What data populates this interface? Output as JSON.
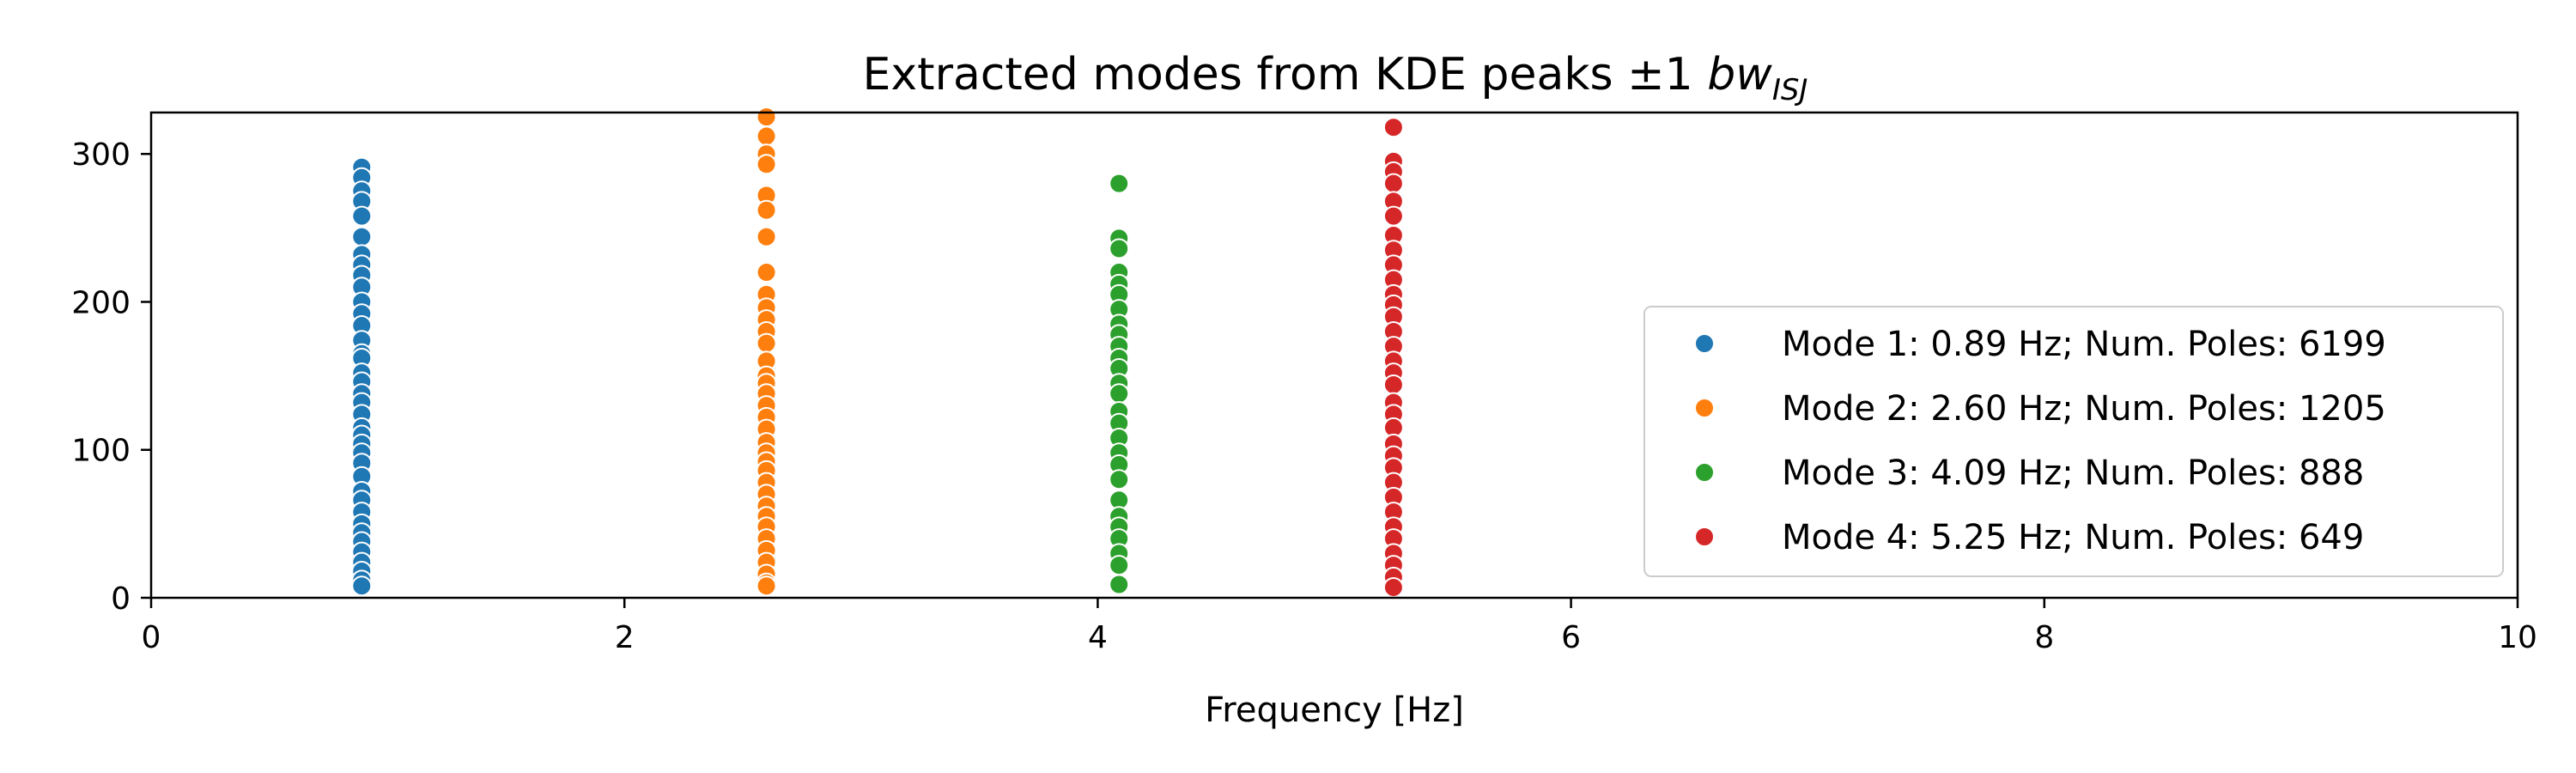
{
  "chart_data": {
    "type": "scatter",
    "title_main": "Extracted modes from KDE peaks ±1 ",
    "title_math": "bw",
    "title_sub": "ISJ",
    "xlabel": "Frequency [Hz]",
    "ylabel": "",
    "xlim": [
      0,
      10
    ],
    "ylim": [
      0,
      328
    ],
    "xticks": [
      0,
      2,
      4,
      6,
      8,
      10
    ],
    "yticks": [
      0,
      100,
      200,
      300
    ],
    "grid": false,
    "legend_position": "right",
    "series": [
      {
        "name": "Mode 1: 0.89 Hz; Num. Poles: 6199",
        "color": "#1f77b4",
        "x": [
          0.89,
          0.89,
          0.89,
          0.89,
          0.89,
          0.89,
          0.89,
          0.89,
          0.89,
          0.89,
          0.89,
          0.89,
          0.89,
          0.89,
          0.89,
          0.89,
          0.89,
          0.89,
          0.89,
          0.89,
          0.89,
          0.89,
          0.89,
          0.89,
          0.89,
          0.89,
          0.89,
          0.89,
          0.89,
          0.89,
          0.89,
          0.89,
          0.89,
          0.89,
          0.89,
          0.89,
          0.89,
          0.89
        ],
        "y": [
          291,
          284,
          275,
          268,
          258,
          244,
          232,
          225,
          218,
          210,
          200,
          192,
          184,
          174,
          165,
          162,
          152,
          146,
          138,
          132,
          124,
          115,
          110,
          104,
          98,
          91,
          82,
          72,
          66,
          58,
          50,
          44,
          38,
          31,
          24,
          18,
          12,
          8
        ]
      },
      {
        "name": "Mode 2: 2.60 Hz; Num. Poles: 1205",
        "color": "#ff7f0e",
        "x": [
          2.6,
          2.6,
          2.6,
          2.6,
          2.6,
          2.6,
          2.6,
          2.6,
          2.6,
          2.6,
          2.6,
          2.6,
          2.6,
          2.6,
          2.6,
          2.6,
          2.6,
          2.6,
          2.6,
          2.6,
          2.6,
          2.6,
          2.6,
          2.6,
          2.6,
          2.6,
          2.6,
          2.6,
          2.6,
          2.6,
          2.6,
          2.6,
          2.6,
          2.6,
          2.6
        ],
        "y": [
          325,
          312,
          300,
          293,
          272,
          262,
          244,
          220,
          205,
          196,
          188,
          180,
          172,
          160,
          150,
          145,
          138,
          130,
          122,
          114,
          105,
          98,
          92,
          86,
          78,
          70,
          62,
          55,
          48,
          40,
          32,
          24,
          16,
          10,
          8
        ]
      },
      {
        "name": "Mode 3: 4.09 Hz; Num. Poles: 888",
        "color": "#2ca02c",
        "x": [
          4.09,
          4.09,
          4.09,
          4.09,
          4.09,
          4.09,
          4.09,
          4.09,
          4.09,
          4.09,
          4.09,
          4.09,
          4.09,
          4.09,
          4.09,
          4.09,
          4.09,
          4.09,
          4.09,
          4.09,
          4.09,
          4.09,
          4.09,
          4.09,
          4.09,
          4.09,
          4.09
        ],
        "y": [
          280,
          243,
          236,
          220,
          212,
          205,
          195,
          185,
          178,
          170,
          162,
          155,
          145,
          138,
          126,
          118,
          108,
          98,
          90,
          80,
          66,
          55,
          48,
          40,
          30,
          22,
          9
        ]
      },
      {
        "name": "Mode 4: 5.25 Hz; Num. Poles: 649",
        "color": "#d62728",
        "x": [
          5.25,
          5.25,
          5.25,
          5.25,
          5.25,
          5.25,
          5.25,
          5.25,
          5.25,
          5.25,
          5.25,
          5.25,
          5.25,
          5.25,
          5.25,
          5.25,
          5.25,
          5.25,
          5.25,
          5.25,
          5.25,
          5.25,
          5.25,
          5.25,
          5.25,
          5.25,
          5.25,
          5.25,
          5.25,
          5.25,
          5.25,
          5.25,
          5.25
        ],
        "y": [
          318,
          295,
          288,
          280,
          268,
          258,
          245,
          235,
          225,
          215,
          205,
          198,
          190,
          180,
          170,
          160,
          152,
          144,
          132,
          124,
          115,
          104,
          96,
          88,
          78,
          68,
          58,
          48,
          40,
          30,
          22,
          14,
          7
        ]
      }
    ]
  }
}
